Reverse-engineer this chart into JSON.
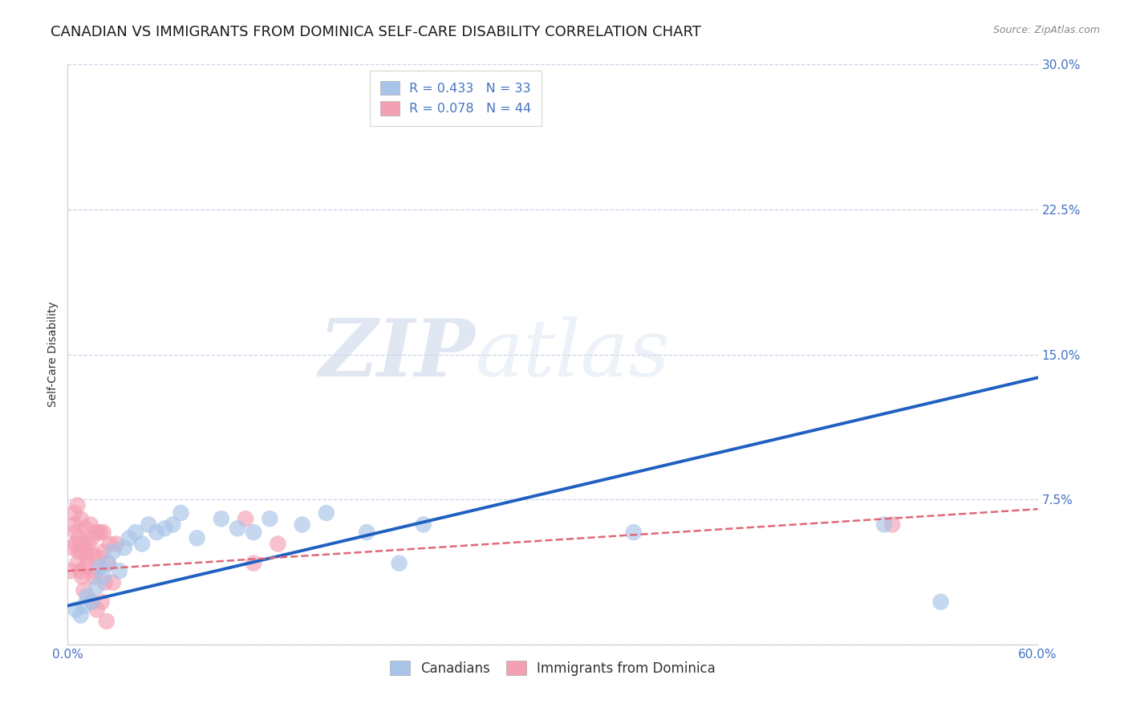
{
  "title": "CANADIAN VS IMMIGRANTS FROM DOMINICA SELF-CARE DISABILITY CORRELATION CHART",
  "source": "Source: ZipAtlas.com",
  "ylabel": "Self-Care Disability",
  "xlim": [
    0.0,
    0.6
  ],
  "ylim": [
    0.0,
    0.3
  ],
  "xticks": [
    0.0,
    0.1,
    0.2,
    0.3,
    0.4,
    0.5,
    0.6
  ],
  "xticklabels": [
    "0.0%",
    "",
    "",
    "",
    "",
    "",
    "60.0%"
  ],
  "yticks": [
    0.0,
    0.075,
    0.15,
    0.225,
    0.3
  ],
  "yticklabels": [
    "",
    "7.5%",
    "15.0%",
    "22.5%",
    "30.0%"
  ],
  "canadian_R": 0.433,
  "canadian_N": 33,
  "dominica_R": 0.078,
  "dominica_N": 44,
  "canadian_color": "#a8c4e8",
  "dominica_color": "#f4a0b4",
  "canadian_line_color": "#2060c0",
  "dominica_line_color": "#e06878",
  "legend_label_canadian": "Canadians",
  "legend_label_dominica": "Immigrants from Dominica",
  "watermark_zip": "ZIP",
  "watermark_atlas": "atlas",
  "canadian_x": [
    0.005,
    0.008,
    0.01,
    0.012,
    0.015,
    0.018,
    0.02,
    0.022,
    0.025,
    0.028,
    0.032,
    0.035,
    0.038,
    0.042,
    0.046,
    0.05,
    0.055,
    0.06,
    0.065,
    0.07,
    0.08,
    0.095,
    0.105,
    0.115,
    0.125,
    0.145,
    0.16,
    0.185,
    0.205,
    0.22,
    0.35,
    0.505,
    0.54
  ],
  "canadian_y": [
    0.018,
    0.015,
    0.02,
    0.025,
    0.022,
    0.03,
    0.04,
    0.035,
    0.042,
    0.048,
    0.038,
    0.05,
    0.055,
    0.058,
    0.052,
    0.062,
    0.058,
    0.06,
    0.062,
    0.068,
    0.055,
    0.065,
    0.06,
    0.058,
    0.065,
    0.062,
    0.068,
    0.058,
    0.042,
    0.062,
    0.058,
    0.062,
    0.022
  ],
  "dominica_x": [
    0.002,
    0.003,
    0.004,
    0.004,
    0.005,
    0.005,
    0.006,
    0.006,
    0.007,
    0.007,
    0.008,
    0.008,
    0.009,
    0.009,
    0.01,
    0.01,
    0.011,
    0.011,
    0.012,
    0.012,
    0.013,
    0.014,
    0.015,
    0.015,
    0.016,
    0.016,
    0.017,
    0.018,
    0.018,
    0.019,
    0.02,
    0.021,
    0.022,
    0.022,
    0.023,
    0.024,
    0.025,
    0.026,
    0.028,
    0.03,
    0.11,
    0.115,
    0.13,
    0.51
  ],
  "dominica_y": [
    0.038,
    0.05,
    0.062,
    0.068,
    0.052,
    0.058,
    0.042,
    0.072,
    0.055,
    0.048,
    0.038,
    0.065,
    0.035,
    0.048,
    0.052,
    0.028,
    0.04,
    0.06,
    0.048,
    0.045,
    0.052,
    0.062,
    0.022,
    0.055,
    0.046,
    0.035,
    0.038,
    0.058,
    0.018,
    0.045,
    0.058,
    0.022,
    0.058,
    0.048,
    0.032,
    0.012,
    0.042,
    0.052,
    0.032,
    0.052,
    0.065,
    0.042,
    0.052,
    0.062
  ],
  "canadian_line_x0": 0.0,
  "canadian_line_y0": 0.02,
  "canadian_line_x1": 0.6,
  "canadian_line_y1": 0.138,
  "dominica_line_x0": 0.0,
  "dominica_line_y0": 0.038,
  "dominica_line_x1": 0.6,
  "dominica_line_y1": 0.07,
  "background_color": "#ffffff",
  "grid_color": "#c8d4e8",
  "title_fontsize": 13,
  "axis_label_fontsize": 10,
  "tick_fontsize": 11,
  "tick_color": "#4472c4",
  "source_color": "#888888"
}
